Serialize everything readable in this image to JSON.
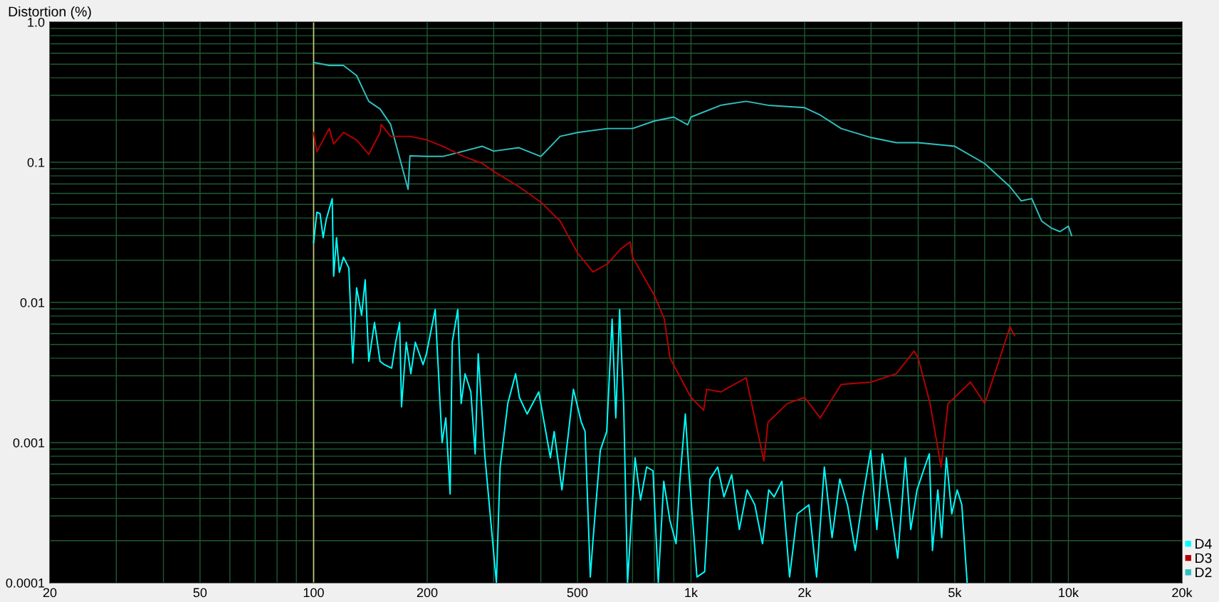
{
  "chart_data": {
    "type": "line",
    "ylabel": "Distortion (%)",
    "log": "xy",
    "grid": true,
    "legend": "bottom right",
    "line_style": "solid",
    "marker": "none",
    "xlim": [
      20,
      20000
    ],
    "xticks": [
      20,
      50,
      100,
      200,
      500,
      {
        "value": 1000,
        "label": "1k"
      },
      {
        "value": 2000,
        "label": "2k"
      },
      {
        "value": 5000,
        "label": "5k"
      },
      {
        "value": 10000,
        "label": "10k"
      },
      {
        "value": 20000,
        "label": "20k"
      }
    ],
    "ylim": [
      0.0001,
      1.0
    ],
    "yticks": [
      {
        "value": 0.0001,
        "label": "0.0001"
      },
      {
        "value": 0.001,
        "label": "0.001"
      },
      {
        "value": 0.01,
        "label": "0.01"
      },
      {
        "value": 0.1,
        "label": "0.1"
      },
      {
        "value": 1.0,
        "label": "1.0"
      }
    ],
    "ref_lines": [
      {
        "axis": "x",
        "value": 100,
        "label": null,
        "color": "#c8c878"
      }
    ],
    "series": [
      {
        "name": "D4",
        "color": "#00ffff",
        "x": [
          100,
          102,
          104,
          106,
          108,
          112,
          113,
          115,
          117,
          120,
          124,
          127,
          130,
          134,
          137,
          140,
          145,
          150,
          154,
          161,
          165,
          169,
          171,
          176,
          181,
          186,
          195,
          199,
          210,
          219,
          224,
          230,
          233,
          241,
          246,
          252,
          261,
          268,
          273,
          284,
          305,
          312,
          327,
          343,
          351,
          368,
          395,
          424,
          434,
          455,
          488,
          512,
          524,
          541,
          549,
          575,
          598,
          618,
          632,
          647,
          663,
          679,
          711,
          735,
          763,
          793,
          819,
          847,
          879,
          913,
          934,
          966,
          989,
          1037,
          1087,
          1123,
          1177,
          1223,
          1282,
          1343,
          1408,
          1476,
          1547,
          1607,
          1661,
          1741,
          1825,
          1912,
          2053,
          2152,
          2256,
          2365,
          2479,
          2598,
          2724,
          2855,
          2993,
          3108,
          3213,
          3368,
          3530,
          3700,
          3823,
          3971,
          4162,
          4281,
          4363,
          4509,
          4617,
          4750,
          4909,
          5074,
          5219,
          5393
        ],
        "values": [
          0.0267,
          0.044,
          0.043,
          0.029,
          0.039,
          0.055,
          0.0154,
          0.029,
          0.0164,
          0.021,
          0.0176,
          0.0037,
          0.0127,
          0.0081,
          0.0145,
          0.0038,
          0.0072,
          0.0038,
          0.0036,
          0.0034,
          0.0052,
          0.0072,
          0.0018,
          0.0052,
          0.0031,
          0.0052,
          0.0036,
          0.0043,
          0.0089,
          0.001,
          0.0015,
          0.00043,
          0.0052,
          0.0089,
          0.0019,
          0.0031,
          0.0023,
          0.00083,
          0.0043,
          0.00083,
          0.0001,
          0.00067,
          0.0019,
          0.0031,
          0.0021,
          0.0016,
          0.0023,
          0.00078,
          0.0012,
          0.00046,
          0.0024,
          0.0014,
          0.0012,
          0.00011,
          0.00019,
          0.00088,
          0.0012,
          0.0076,
          0.0015,
          0.0089,
          0.0019,
          0.0001,
          0.00078,
          0.00039,
          0.00067,
          0.00063,
          0.0001,
          0.00053,
          0.00028,
          0.00019,
          0.00053,
          0.0016,
          0.00059,
          0.00011,
          0.00012,
          0.00055,
          0.00067,
          0.00041,
          0.00059,
          0.00024,
          0.00046,
          0.00036,
          0.00019,
          0.00046,
          0.00041,
          0.00053,
          0.00011,
          0.00031,
          0.00036,
          0.00011,
          0.00067,
          0.00021,
          0.00055,
          0.00036,
          0.00017,
          0.00041,
          0.00088,
          0.00024,
          0.00083,
          0.00036,
          0.00015,
          0.00078,
          0.00024,
          0.00046,
          0.00067,
          0.00083,
          0.00017,
          0.00046,
          0.00021,
          0.00078,
          0.00031,
          0.00046,
          0.00036,
          0.0001
        ]
      },
      {
        "name": "D3",
        "color": "#b80000",
        "x": [
          100,
          102,
          110,
          113,
          120,
          130,
          140,
          150,
          151,
          160,
          180,
          200,
          220,
          250,
          280,
          300,
          350,
          400,
          450,
          500,
          550,
          600,
          650,
          690,
          700,
          800,
          850,
          880,
          1000,
          1080,
          1100,
          1200,
          1400,
          1560,
          1600,
          1800,
          2000,
          2200,
          2500,
          3000,
          3500,
          3900,
          4000,
          4300,
          4600,
          4800,
          5000,
          5500,
          6000,
          6500,
          7000,
          7200
        ],
        "values": [
          0.163,
          0.119,
          0.174,
          0.135,
          0.163,
          0.144,
          0.114,
          0.163,
          0.186,
          0.153,
          0.153,
          0.144,
          0.13,
          0.11,
          0.098,
          0.086,
          0.067,
          0.052,
          0.038,
          0.0226,
          0.0165,
          0.0188,
          0.024,
          0.027,
          0.021,
          0.0112,
          0.0076,
          0.004,
          0.0021,
          0.0017,
          0.0024,
          0.0023,
          0.0029,
          0.00074,
          0.0014,
          0.0019,
          0.0021,
          0.0015,
          0.0026,
          0.0027,
          0.0031,
          0.0045,
          0.004,
          0.0019,
          0.00067,
          0.0019,
          0.0021,
          0.0027,
          0.0019,
          0.0036,
          0.0067,
          0.0058
        ]
      },
      {
        "name": "D2",
        "color": "#30c0c0",
        "x": [
          100,
          110,
          120,
          130,
          140,
          150,
          160,
          178,
          180,
          200,
          220,
          250,
          280,
          300,
          350,
          400,
          450,
          500,
          600,
          700,
          800,
          900,
          980,
          1000,
          1200,
          1400,
          1600,
          2000,
          2200,
          2500,
          3000,
          3500,
          4000,
          5000,
          6000,
          7000,
          7500,
          8000,
          8500,
          9000,
          9500,
          10000,
          10200
        ],
        "values": [
          0.515,
          0.49,
          0.49,
          0.415,
          0.272,
          0.24,
          0.186,
          0.064,
          0.111,
          0.11,
          0.11,
          0.12,
          0.13,
          0.12,
          0.127,
          0.11,
          0.153,
          0.163,
          0.174,
          0.174,
          0.197,
          0.21,
          0.185,
          0.21,
          0.255,
          0.272,
          0.255,
          0.245,
          0.217,
          0.174,
          0.15,
          0.138,
          0.138,
          0.13,
          0.098,
          0.067,
          0.053,
          0.055,
          0.038,
          0.034,
          0.032,
          0.035,
          0.03
        ]
      }
    ]
  }
}
